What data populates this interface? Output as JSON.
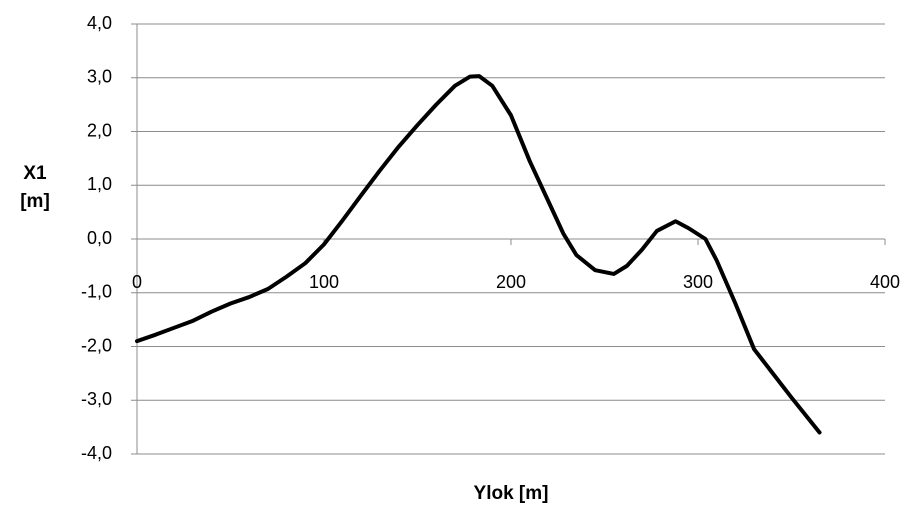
{
  "chart_data": {
    "type": "line",
    "xlabel": "Ylok [m]",
    "ylabel": "X1 [m]",
    "x": [
      0,
      10,
      20,
      30,
      40,
      50,
      60,
      70,
      80,
      90,
      100,
      110,
      120,
      130,
      140,
      150,
      160,
      170,
      178,
      183,
      190,
      200,
      210,
      220,
      228,
      235,
      245,
      255,
      262,
      270,
      278,
      288,
      295,
      304,
      310,
      320,
      330,
      340,
      350,
      365
    ],
    "series": [
      {
        "name": "X1",
        "color": "#000000",
        "values": [
          -1.9,
          -1.78,
          -1.65,
          -1.52,
          -1.35,
          -1.2,
          -1.08,
          -0.93,
          -0.7,
          -0.45,
          -0.1,
          0.35,
          0.82,
          1.28,
          1.72,
          2.12,
          2.5,
          2.85,
          3.02,
          3.03,
          2.85,
          2.3,
          1.45,
          0.7,
          0.1,
          -0.3,
          -0.58,
          -0.65,
          -0.5,
          -0.2,
          0.15,
          0.33,
          0.2,
          0.0,
          -0.4,
          -1.2,
          -2.05,
          -2.5,
          -2.95,
          -3.6
        ]
      }
    ],
    "xlim": [
      0,
      400
    ],
    "xticks": [
      0,
      100,
      200,
      300,
      400
    ],
    "ylim": [
      -4,
      4
    ],
    "yticks": [
      {
        "value": -4,
        "label": "-4,0"
      },
      {
        "value": -3,
        "label": "-3,0"
      },
      {
        "value": -2,
        "label": "-2,0"
      },
      {
        "value": -1,
        "label": "-1,0"
      },
      {
        "value": 0,
        "label": "0,0"
      },
      {
        "value": 1,
        "label": "1,0"
      },
      {
        "value": 2,
        "label": "2,0"
      },
      {
        "value": 3,
        "label": "3,0"
      },
      {
        "value": 4,
        "label": "4,0"
      }
    ],
    "grid": true
  }
}
